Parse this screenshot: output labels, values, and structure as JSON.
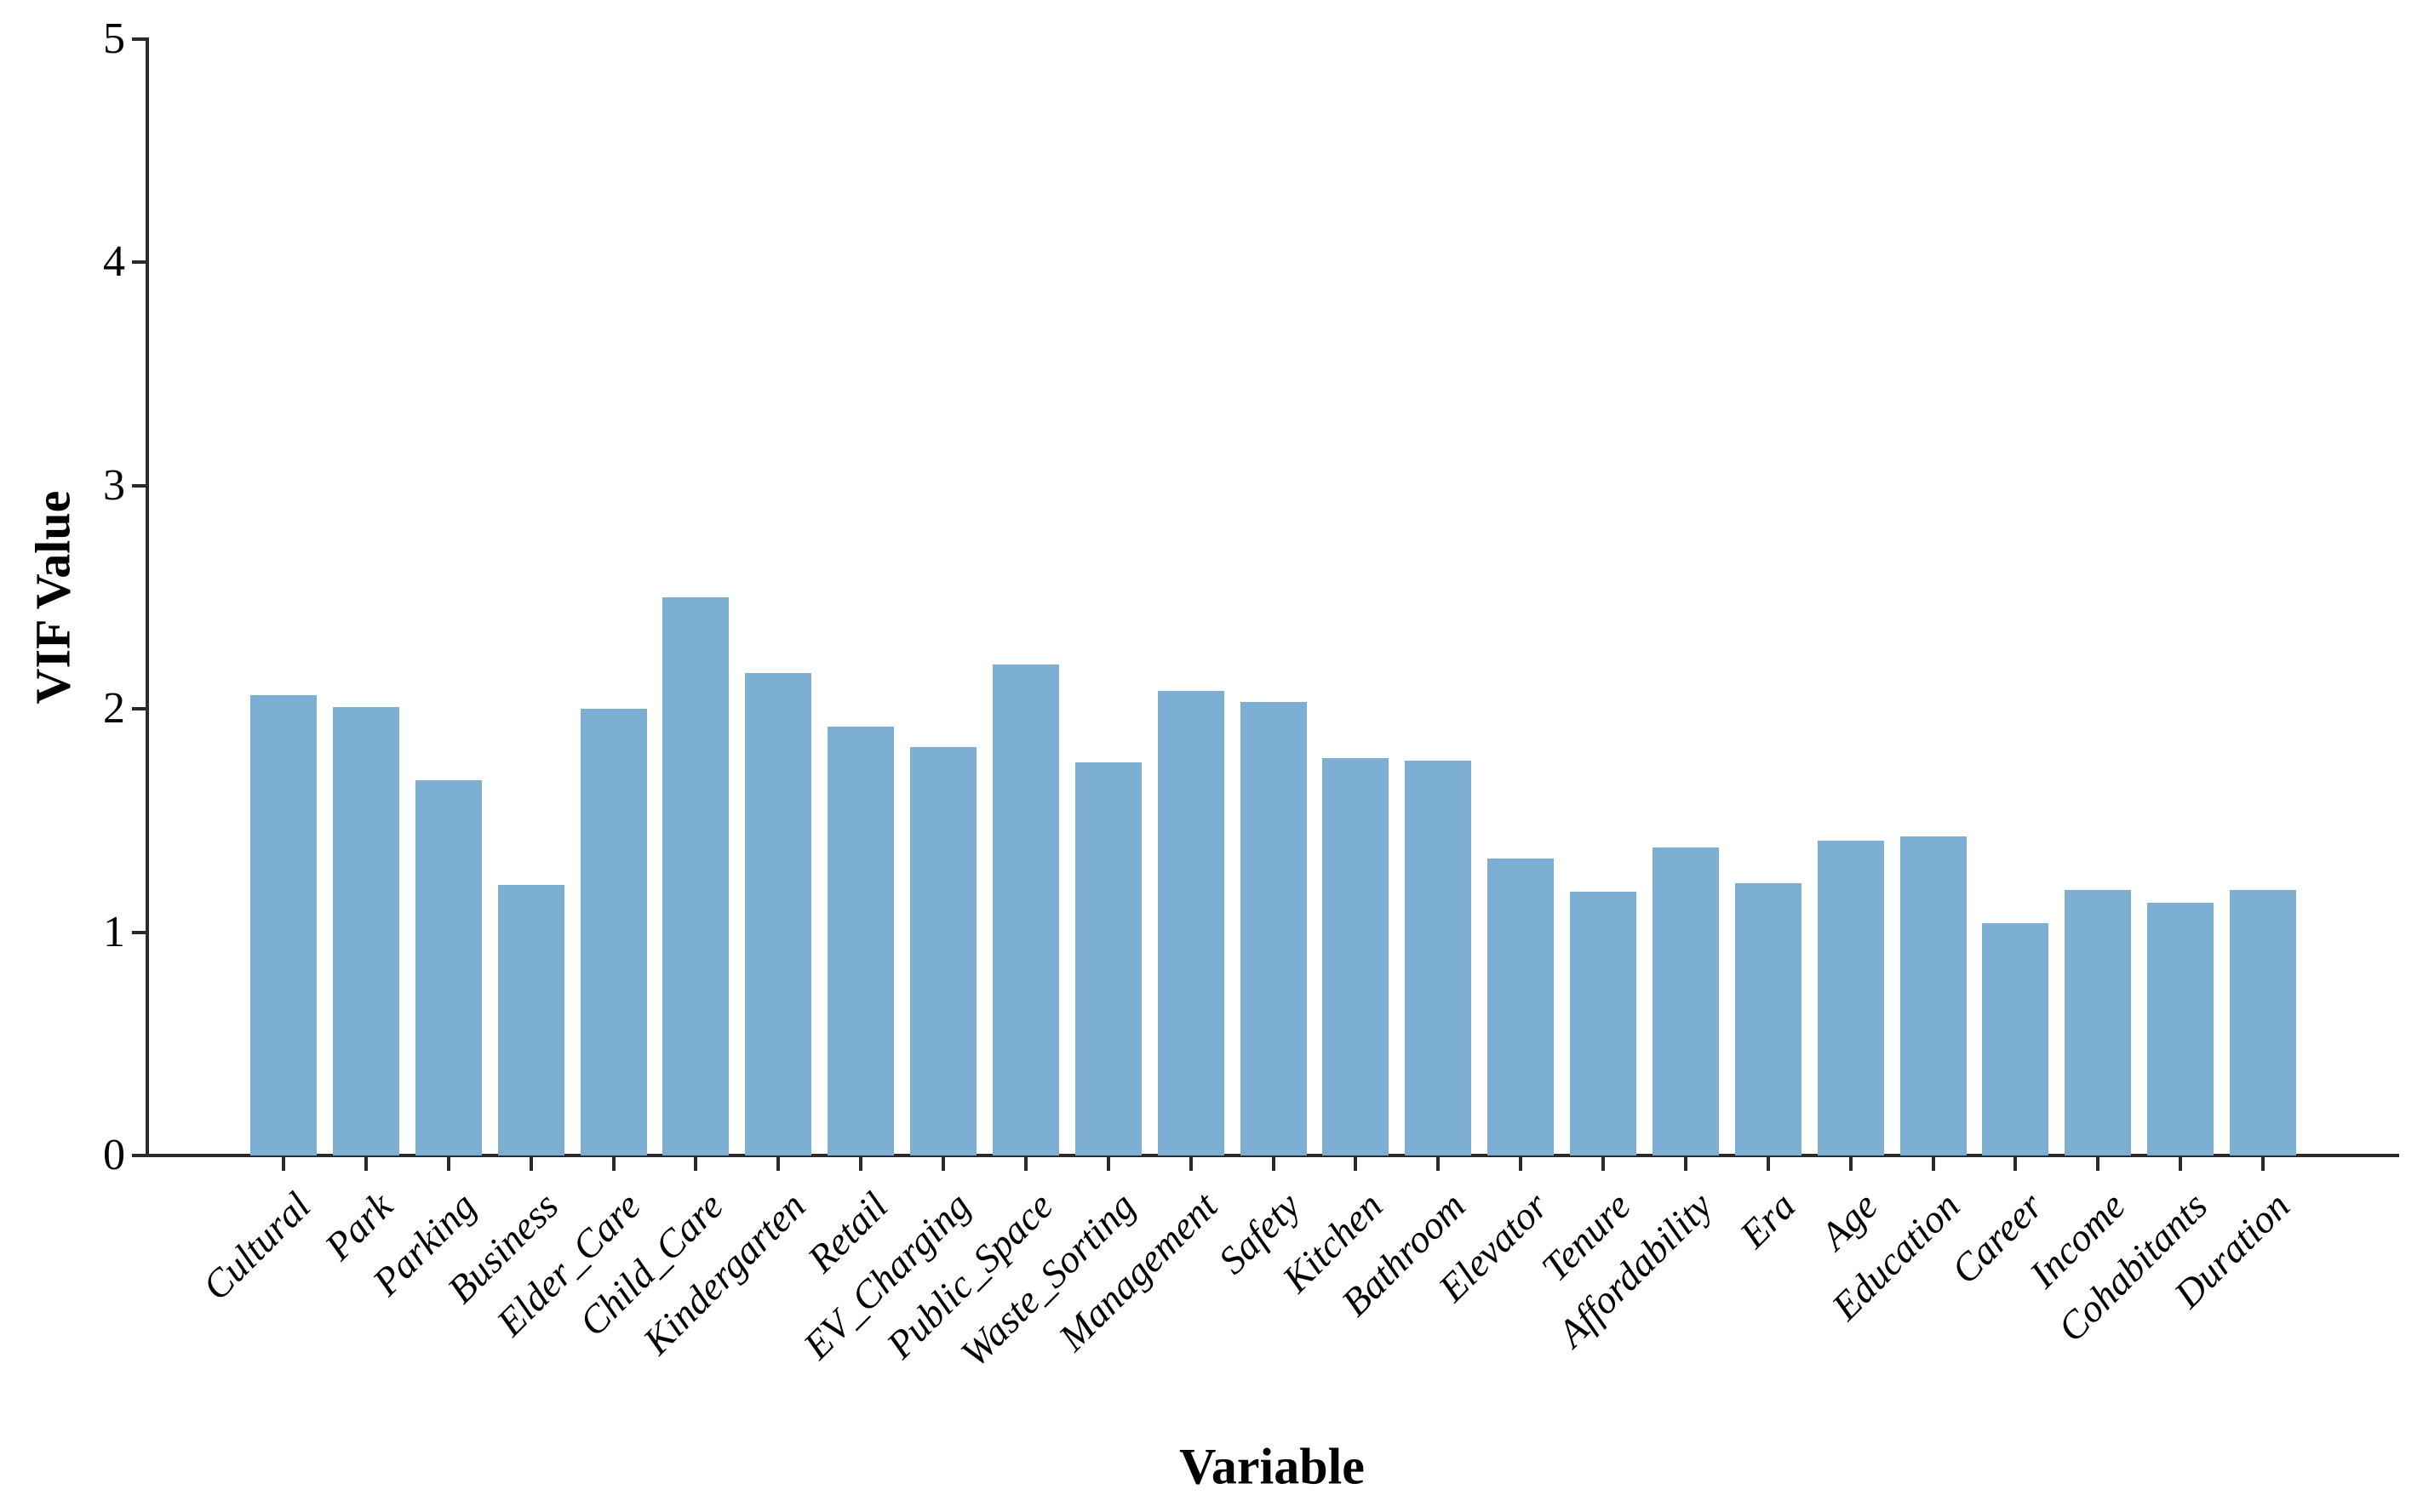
{
  "chart_data": {
    "type": "bar",
    "title": "",
    "xlabel": "Variable",
    "ylabel": "VIF Value",
    "ylim": [
      0,
      5
    ],
    "yticks": [
      "0",
      "1",
      "2",
      "3",
      "4",
      "5"
    ],
    "grid": false,
    "legend": null,
    "bar_color": "#7CAFD3",
    "axis_color": "#2a2a2a",
    "categories": [
      "Cultural",
      "Park",
      "Parking",
      "Business",
      "Elder_Care",
      "Child_Care",
      "Kindergarten",
      "Retail",
      "EV_Charging",
      "Public_Space",
      "Waste_Sorting",
      "Management",
      "Safety",
      "Kitchen",
      "Bathroom",
      "Elevator",
      "Tenure",
      "Affordability",
      "Era",
      "Age",
      "Education",
      "Career",
      "Income",
      "Cohabitants",
      "Duration"
    ],
    "values": [
      2.06,
      2.01,
      1.68,
      1.21,
      2.0,
      2.5,
      2.16,
      1.92,
      1.83,
      2.2,
      1.76,
      2.08,
      2.03,
      1.78,
      1.77,
      1.33,
      1.18,
      1.38,
      1.22,
      1.41,
      1.43,
      1.04,
      1.19,
      1.13,
      1.19
    ]
  }
}
